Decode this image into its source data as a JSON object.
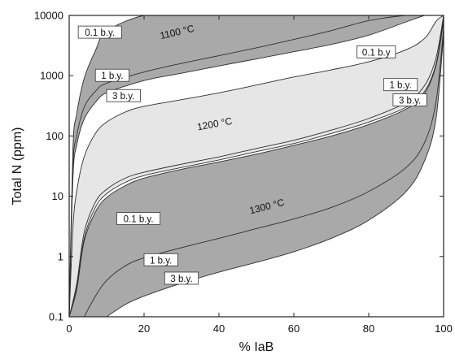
{
  "chart_data": {
    "type": "area",
    "xlabel": "% IaB",
    "ylabel": "Total N (ppm)",
    "xlim": [
      0,
      100
    ],
    "ylim": [
      0.1,
      10000
    ],
    "y_scale": "log",
    "x_ticks": [
      0,
      20,
      40,
      60,
      80,
      100
    ],
    "y_ticks": [
      0.1,
      1,
      10,
      100,
      1000,
      10000
    ],
    "y_tick_labels": [
      "0.1",
      "1",
      "10",
      "100",
      "1000",
      "10000"
    ],
    "colors": {
      "dark_band": "#a9a9a9",
      "light_band": "#e6e6e6",
      "curve": "#2e2e2e"
    },
    "curves": [
      {
        "group": "1100 °C",
        "label": "0.1 b.y.",
        "x": [
          0,
          1,
          2,
          4,
          7,
          10,
          20,
          30,
          40,
          50,
          60,
          70,
          80,
          90
        ],
        "y": [
          0.1,
          60,
          230,
          900,
          2600,
          5500,
          10000,
          10000,
          10000,
          10000,
          10000,
          10000,
          10000,
          10000
        ]
      },
      {
        "group": "1100 °C",
        "label": "1 b.y.",
        "x": [
          0,
          1,
          2,
          4,
          7,
          10,
          20,
          30,
          40,
          50,
          60,
          70,
          80,
          90,
          95,
          98,
          100
        ],
        "y": [
          0.1,
          30,
          100,
          300,
          550,
          750,
          1150,
          1600,
          2150,
          2900,
          4000,
          5600,
          8200,
          10000,
          10000,
          10000,
          10000
        ]
      },
      {
        "group": "1100 °C",
        "label": "3 b.y.",
        "x": [
          0,
          1,
          2,
          4,
          7,
          10,
          20,
          30,
          40,
          50,
          60,
          70,
          80,
          90,
          95,
          98,
          100
        ],
        "y": [
          0.1,
          20,
          70,
          190,
          360,
          520,
          830,
          1100,
          1450,
          1900,
          2500,
          3300,
          4700,
          7800,
          10000,
          10000,
          10000
        ]
      },
      {
        "group": "1200 °C",
        "label": "0.1 b.y.",
        "x": [
          0,
          1,
          2,
          4,
          7,
          10,
          15,
          20,
          30,
          40,
          50,
          60,
          70,
          80,
          90,
          95,
          98,
          100
        ],
        "y": [
          0.1,
          3,
          12,
          45,
          110,
          170,
          250,
          310,
          400,
          520,
          700,
          950,
          1250,
          1700,
          2700,
          4200,
          8000,
          10000
        ]
      },
      {
        "group": "1200 °C",
        "label": "1 b.y.",
        "x": [
          0,
          2,
          4,
          7,
          10,
          15,
          20,
          30,
          40,
          50,
          60,
          70,
          80,
          90,
          95,
          98,
          100
        ],
        "y": [
          0.1,
          0.35,
          2.5,
          8,
          13,
          20,
          25,
          34,
          45,
          62,
          85,
          125,
          195,
          360,
          700,
          2000,
          10000
        ]
      },
      {
        "group": "1200 °C",
        "label": "3 b.y.",
        "x": [
          0,
          2,
          4,
          7,
          10,
          15,
          20,
          30,
          40,
          50,
          60,
          70,
          80,
          90,
          95,
          98,
          100
        ],
        "y": [
          0.1,
          0.3,
          2,
          6.5,
          11,
          17,
          22,
          30,
          40,
          55,
          75,
          110,
          170,
          300,
          560,
          1600,
          9000
        ]
      },
      {
        "group": "1300 °C",
        "label": "0.1 b.y.",
        "x": [
          0,
          2,
          4,
          7,
          10,
          15,
          20,
          30,
          40,
          50,
          60,
          70,
          80,
          90,
          95,
          98,
          100
        ],
        "y": [
          0.1,
          0.28,
          1.8,
          5.5,
          9.5,
          15,
          20,
          28,
          37,
          50,
          70,
          100,
          155,
          280,
          520,
          1500,
          8000
        ]
      },
      {
        "group": "1300 °C",
        "label": "1 b.y.",
        "x": [
          4,
          7,
          10,
          15,
          20,
          30,
          40,
          50,
          60,
          70,
          80,
          90,
          95,
          98,
          100
        ],
        "y": [
          0.1,
          0.22,
          0.4,
          0.7,
          0.95,
          1.4,
          2,
          2.9,
          4.2,
          6.5,
          12,
          30,
          80,
          380,
          6000
        ]
      },
      {
        "group": "1300 °C",
        "label": "3 b.y.",
        "x": [
          10,
          15,
          20,
          30,
          40,
          50,
          60,
          70,
          80,
          90,
          95,
          98,
          100
        ],
        "y": [
          0.1,
          0.16,
          0.22,
          0.36,
          0.55,
          0.8,
          1.2,
          2,
          4,
          12,
          40,
          200,
          5000
        ]
      }
    ],
    "annotations": {
      "temp_1100": {
        "text": "1100 °C",
        "x": 29,
        "y": 4700
      },
      "temp_1200": {
        "text": "1200 °C",
        "x": 39,
        "y": 140
      },
      "temp_1300": {
        "text": "1300 °C",
        "x": 53,
        "y": 6
      },
      "labels": [
        {
          "text": "0.1 b.y.",
          "x": 8.2,
          "y": 5200
        },
        {
          "text": "1 b.y.",
          "x": 11.5,
          "y": 1000
        },
        {
          "text": "3 b.y.",
          "x": 14.5,
          "y": 460
        },
        {
          "text": "0.1 b.y",
          "x": 82,
          "y": 2450
        },
        {
          "text": "1 b.y.",
          "x": 88.5,
          "y": 700
        },
        {
          "text": "3 b.y.",
          "x": 91,
          "y": 390
        },
        {
          "text": "0.1 b.y.",
          "x": 18.5,
          "y": 4.2
        },
        {
          "text": "1 b.y.",
          "x": 24.5,
          "y": 0.87
        },
        {
          "text": "3 b.y.",
          "x": 30,
          "y": 0.43
        }
      ]
    }
  }
}
